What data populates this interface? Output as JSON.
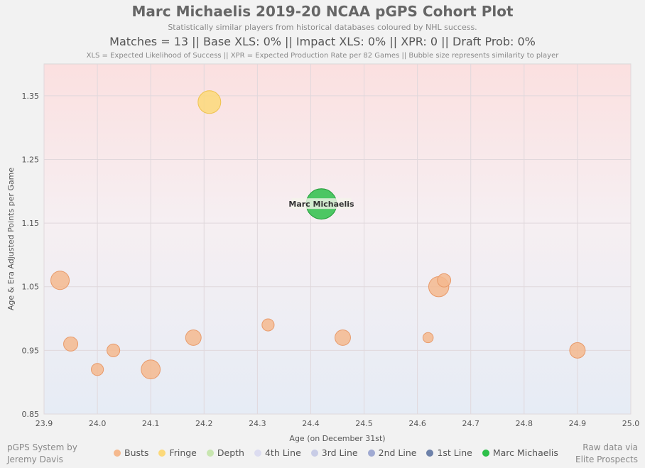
{
  "header": {
    "title": "Marc Michaelis 2019-20 NCAA pGPS Cohort Plot",
    "subtitle": "Statistically similar players from historical databases coloured by NHL success.",
    "stats": "Matches = 13  ||  Base XLS: 0%  ||  Impact XLS: 0%  ||  XPR: 0  ||  Draft Prob: 0%",
    "footnote": "XLS = Expected Likelihood of Success || XPR = Expected Production Rate per 82 Games || Bubble size represents similarity to player"
  },
  "credits": {
    "left_line1": "pGPS System by",
    "left_line2": "Jeremy Davis",
    "right_line1": "Raw data via",
    "right_line2": "Elite Prospects"
  },
  "legend": [
    {
      "label": "Busts",
      "color": "#f5b98e"
    },
    {
      "label": "Fringe",
      "color": "#fcd97a"
    },
    {
      "label": "Depth",
      "color": "#c8e6b0"
    },
    {
      "label": "4th Line",
      "color": "#dcdcf0"
    },
    {
      "label": "3rd Line",
      "color": "#c8cce6"
    },
    {
      "label": "2nd Line",
      "color": "#a0aad2"
    },
    {
      "label": "1st Line",
      "color": "#6e82aa"
    },
    {
      "label": "Marc Michaelis",
      "color": "#2ec04a"
    }
  ],
  "chart_data": {
    "type": "scatter",
    "xlabel": "Age (on December 31st)",
    "ylabel": "Age & Era Adjusted Points per Game",
    "xlim": [
      23.9,
      25.0
    ],
    "ylim": [
      0.85,
      1.4
    ],
    "xticks": [
      "23.9",
      "24.0",
      "24.1",
      "24.2",
      "24.3",
      "24.4",
      "24.5",
      "24.6",
      "24.7",
      "24.8",
      "24.9",
      "25.0"
    ],
    "yticks": [
      "0.85",
      "0.95",
      "1.05",
      "1.15",
      "1.25",
      "1.35"
    ],
    "background_gradient": "red at top fading to blue at bottom",
    "points": [
      {
        "x": 24.21,
        "y": 1.34,
        "size": 1.0,
        "category": "Fringe"
      },
      {
        "x": 24.42,
        "y": 1.18,
        "size": 1.45,
        "category": "Marc Michaelis",
        "label": "Marc Michaelis"
      },
      {
        "x": 23.93,
        "y": 1.06,
        "size": 0.75,
        "category": "Busts"
      },
      {
        "x": 23.95,
        "y": 0.96,
        "size": 0.5,
        "category": "Busts"
      },
      {
        "x": 24.0,
        "y": 0.92,
        "size": 0.38,
        "category": "Busts"
      },
      {
        "x": 24.03,
        "y": 0.95,
        "size": 0.42,
        "category": "Busts"
      },
      {
        "x": 24.1,
        "y": 0.92,
        "size": 0.78,
        "category": "Busts"
      },
      {
        "x": 24.18,
        "y": 0.97,
        "size": 0.58,
        "category": "Busts"
      },
      {
        "x": 24.32,
        "y": 0.99,
        "size": 0.38,
        "category": "Busts"
      },
      {
        "x": 24.46,
        "y": 0.97,
        "size": 0.58,
        "category": "Busts"
      },
      {
        "x": 24.62,
        "y": 0.97,
        "size": 0.27,
        "category": "Busts"
      },
      {
        "x": 24.64,
        "y": 1.05,
        "size": 0.85,
        "category": "Busts"
      },
      {
        "x": 24.65,
        "y": 1.06,
        "size": 0.45,
        "category": "Busts"
      },
      {
        "x": 24.9,
        "y": 0.95,
        "size": 0.58,
        "category": "Busts"
      }
    ]
  }
}
